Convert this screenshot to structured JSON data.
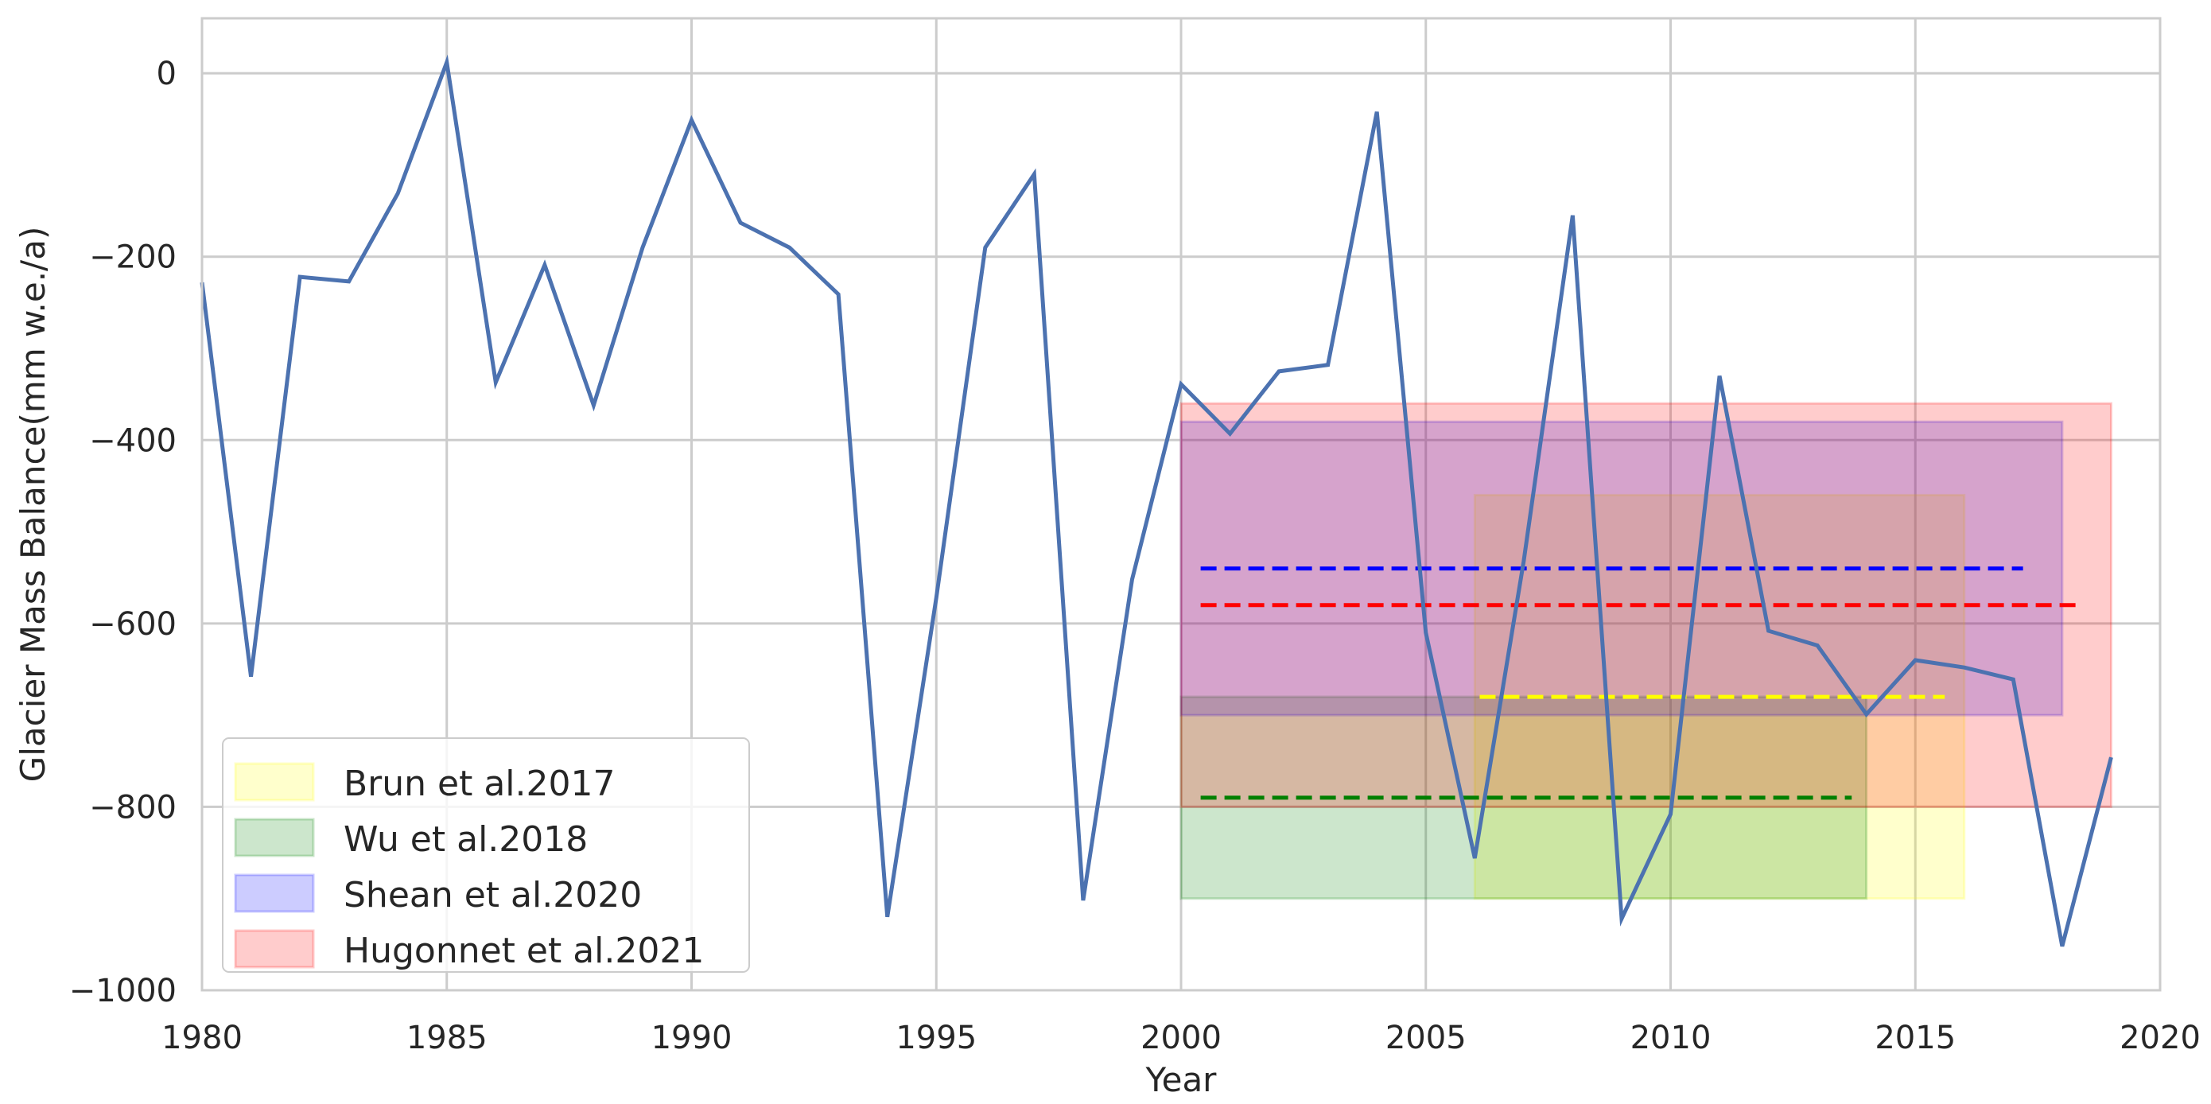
{
  "chart_data": {
    "type": "line",
    "title": "",
    "xlabel": "Year",
    "ylabel": "Glacier Mass Balance(mm w.e./a)",
    "xlim": [
      1980,
      2020
    ],
    "ylim": [
      -1000,
      60
    ],
    "grid": true,
    "legend_position": "lower left",
    "x_ticks": [
      1980,
      1985,
      1990,
      1995,
      2000,
      2005,
      2010,
      2015,
      2020
    ],
    "y_ticks": [
      0,
      -200,
      -400,
      -600,
      -800,
      -1000
    ],
    "x_tick_labels": [
      "1980",
      "1985",
      "1990",
      "1995",
      "2000",
      "2005",
      "2010",
      "2015",
      "2020"
    ],
    "y_tick_labels": [
      "0",
      "−200",
      "−400",
      "−600",
      "−800",
      "−1000"
    ],
    "series": [
      {
        "name": "Glacier Mass Balance",
        "color": "#4c72b0",
        "x": [
          1980,
          1981,
          1982,
          1983,
          1984,
          1985,
          1986,
          1987,
          1988,
          1989,
          1990,
          1991,
          1992,
          1993,
          1994,
          1995,
          1996,
          1997,
          1998,
          1999,
          2000,
          2001,
          2002,
          2003,
          2004,
          2005,
          2006,
          2007,
          2008,
          2009,
          2010,
          2011,
          2012,
          2013,
          2014,
          2015,
          2016,
          2017,
          2018,
          2019
        ],
        "values": [
          -228,
          -658,
          -222,
          -227,
          -131,
          12,
          -337,
          -209,
          -362,
          -190,
          -51,
          -163,
          -190,
          -241,
          -920,
          -572,
          -190,
          -110,
          -902,
          -552,
          -339,
          -393,
          -325,
          -318,
          -42,
          -610,
          -856,
          -532,
          -155,
          -922,
          -808,
          -330,
          -608,
          -624,
          -699,
          -640,
          -648,
          -661,
          -952,
          -746
        ]
      }
    ],
    "ranges": [
      {
        "name": "Brun et al.2017",
        "color": "#ffff00",
        "x_start": 2006,
        "x_end": 2016,
        "y_top": -460,
        "y_bottom": -900,
        "mean": -680,
        "mean_x_start": 2006.1,
        "mean_x_end": 2015.6,
        "mean_color": "#ffff00"
      },
      {
        "name": "Wu et al.2018",
        "color": "#008000",
        "x_start": 2000,
        "x_end": 2014,
        "y_top": -680,
        "y_bottom": -900,
        "mean": -790,
        "mean_x_start": 2000.4,
        "mean_x_end": 2013.7,
        "mean_color": "#008000"
      },
      {
        "name": "Shean et al.2020",
        "color": "#0000ff",
        "x_start": 2000,
        "x_end": 2018,
        "y_top": -380,
        "y_bottom": -700,
        "mean": -540,
        "mean_x_start": 2000.4,
        "mean_x_end": 2017.2,
        "mean_color": "#0000ff"
      },
      {
        "name": "Hugonnet et al.2021",
        "color": "#ff0000",
        "x_start": 2000,
        "x_end": 2019,
        "y_top": -360,
        "y_bottom": -800,
        "mean": -580,
        "mean_x_start": 2000.4,
        "mean_x_end": 2018.3,
        "mean_color": "#ff0000"
      }
    ],
    "legend": [
      "Brun et al.2017",
      "Wu et al.2018",
      "Shean et al.2020",
      "Hugonnet et al.2021"
    ]
  }
}
